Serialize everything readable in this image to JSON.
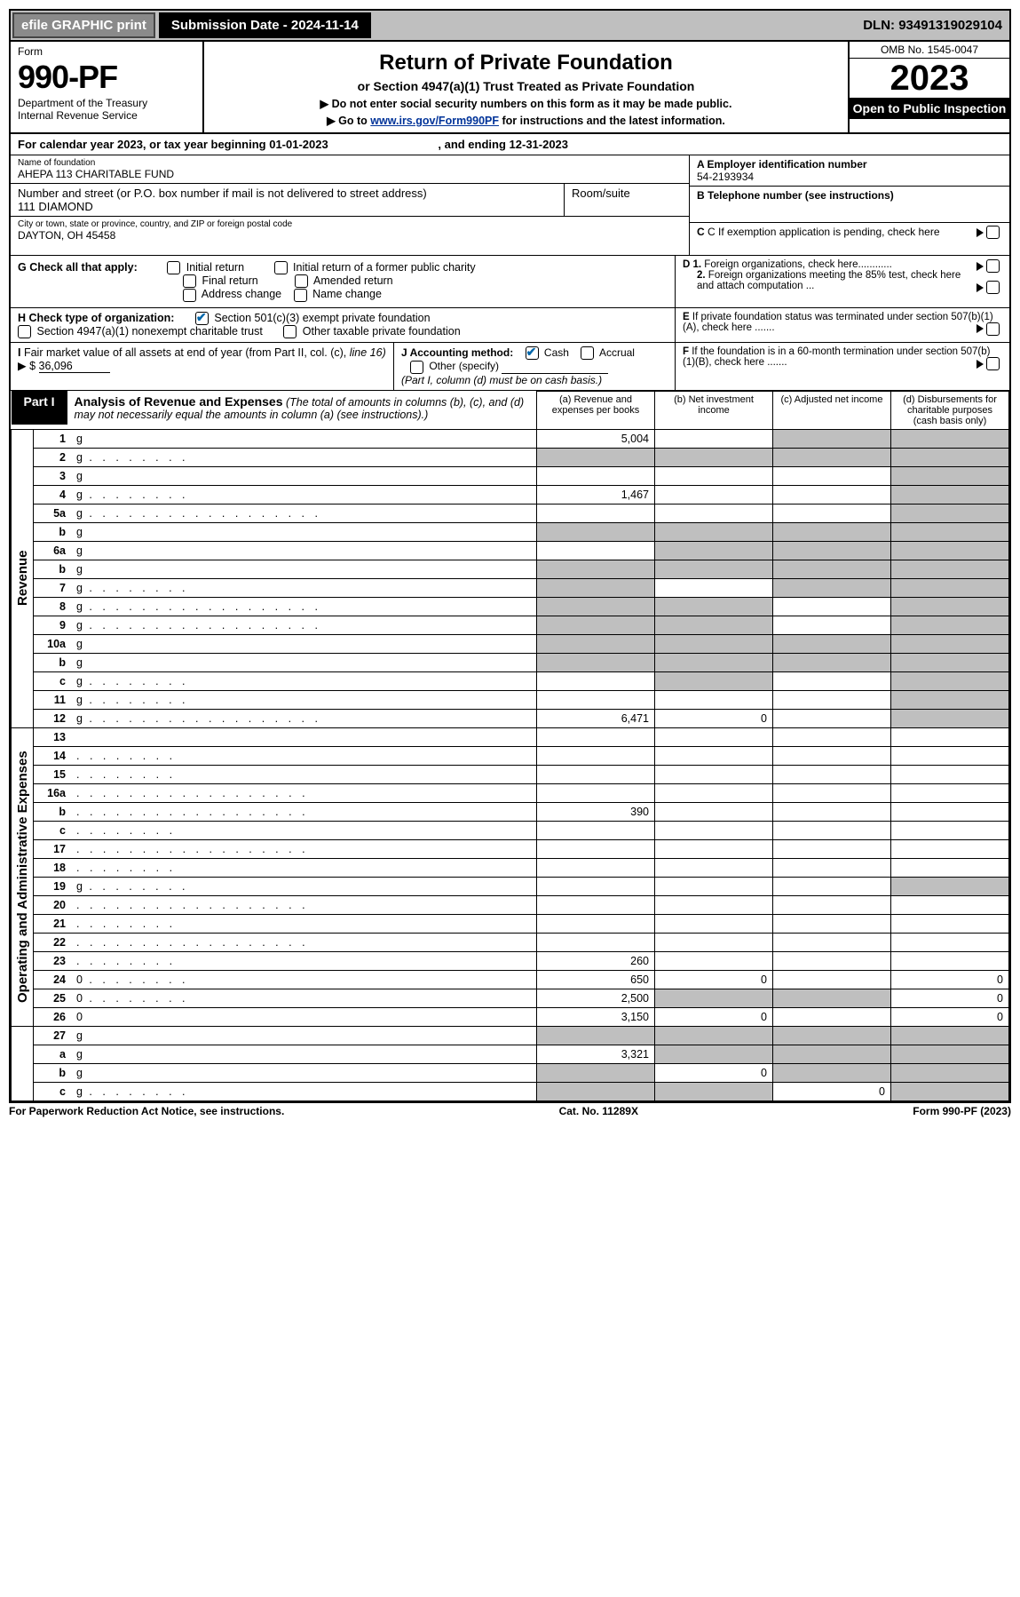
{
  "topbar": {
    "efile": "efile GRAPHIC print",
    "submission": "Submission Date - 2024-11-14",
    "dln": "DLN: 93491319029104"
  },
  "header": {
    "form_word": "Form",
    "form_number": "990-PF",
    "dept": "Department of the Treasury",
    "irs": "Internal Revenue Service",
    "title": "Return of Private Foundation",
    "subtitle": "or Section 4947(a)(1) Trust Treated as Private Foundation",
    "note1": "▶ Do not enter social security numbers on this form as it may be made public.",
    "note2_pre": "▶ Go to ",
    "note2_link": "www.irs.gov/Form990PF",
    "note2_post": " for instructions and the latest information.",
    "omb": "OMB No. 1545-0047",
    "year": "2023",
    "open": "Open to Public Inspection"
  },
  "cal": {
    "line1": "For calendar year 2023, or tax year beginning 01-01-2023",
    "line2": ", and ending 12-31-2023"
  },
  "foundation": {
    "name_label": "Name of foundation",
    "name": "AHEPA 113 CHARITABLE FUND",
    "addr_label": "Number and street (or P.O. box number if mail is not delivered to street address)",
    "addr": "111 DIAMOND",
    "room_label": "Room/suite",
    "city_label": "City or town, state or province, country, and ZIP or foreign postal code",
    "city": "DAYTON, OH  45458",
    "a_label": "A Employer identification number",
    "a_val": "54-2193934",
    "b_label": "B Telephone number (see instructions)",
    "c_label": "C If exemption application is pending, check here",
    "d1_label": "D 1. Foreign organizations, check here............",
    "d2_label": "2. Foreign organizations meeting the 85% test, check here and attach computation ...",
    "e_label": "E  If private foundation status was terminated under section 507(b)(1)(A), check here .......",
    "f_label": "F  If the foundation is in a 60-month termination under section 507(b)(1)(B), check here ......."
  },
  "g": {
    "label": "G Check all that apply:",
    "opts": [
      "Initial return",
      "Initial return of a former public charity",
      "Final return",
      "Amended return",
      "Address change",
      "Name change"
    ]
  },
  "h": {
    "label": "H Check type of organization:",
    "opt1": "Section 501(c)(3) exempt private foundation",
    "opt2": "Section 4947(a)(1) nonexempt charitable trust",
    "opt3": "Other taxable private foundation"
  },
  "i": {
    "label_pre": "I Fair market value of all assets at end of year (from Part II, col. (c), line 16) ",
    "amount_prefix": "▶ $  ",
    "amount": "36,096",
    "j_label": "J Accounting method:",
    "j_cash": "Cash",
    "j_accrual": "Accrual",
    "j_other": "Other (specify)",
    "j_note": "(Part I, column (d) must be on cash basis.)"
  },
  "part1": {
    "badge": "Part I",
    "title": "Analysis of Revenue and Expenses",
    "title_note": " (The total of amounts in columns (b), (c), and (d) may not necessarily equal the amounts in column (a) (see instructions).)",
    "cols": {
      "a": "(a)   Revenue and expenses per books",
      "b": "(b)   Net investment income",
      "c": "(c)   Adjusted net income",
      "d": "(d)   Disbursements for charitable purposes (cash basis only)"
    }
  },
  "sections": {
    "revenue": "Revenue",
    "opex": "Operating and Administrative Expenses"
  },
  "rows": [
    {
      "sec": "rev",
      "n": "1",
      "d": "g",
      "a": "5,004",
      "b": "",
      "c": "g",
      "dot": false
    },
    {
      "sec": "rev",
      "n": "2",
      "d": "g",
      "a": "g",
      "b": "g",
      "c": "g",
      "dot": false,
      "dotshort": true
    },
    {
      "sec": "rev",
      "n": "3",
      "d": "g",
      "a": "",
      "b": "",
      "c": "",
      "dot": false
    },
    {
      "sec": "rev",
      "n": "4",
      "d": "g",
      "a": "1,467",
      "b": "",
      "c": "",
      "dot": false,
      "dotshort": true
    },
    {
      "sec": "rev",
      "n": "5a",
      "d": "g",
      "a": "",
      "b": "",
      "c": "",
      "dot": true
    },
    {
      "sec": "rev",
      "n": "b",
      "d": "g",
      "a": "g",
      "b": "g",
      "c": "g",
      "dot": false
    },
    {
      "sec": "rev",
      "n": "6a",
      "d": "g",
      "a": "",
      "b": "g",
      "c": "g",
      "dot": false
    },
    {
      "sec": "rev",
      "n": "b",
      "d": "g",
      "a": "g",
      "b": "g",
      "c": "g",
      "dot": false
    },
    {
      "sec": "rev",
      "n": "7",
      "d": "g",
      "a": "g",
      "b": "",
      "c": "g",
      "dot": false,
      "dotshort": true
    },
    {
      "sec": "rev",
      "n": "8",
      "d": "g",
      "a": "g",
      "b": "g",
      "c": "",
      "dot": true
    },
    {
      "sec": "rev",
      "n": "9",
      "d": "g",
      "a": "g",
      "b": "g",
      "c": "",
      "dot": true
    },
    {
      "sec": "rev",
      "n": "10a",
      "d": "g",
      "a": "g",
      "b": "g",
      "c": "g",
      "dot": false
    },
    {
      "sec": "rev",
      "n": "b",
      "d": "g",
      "a": "g",
      "b": "g",
      "c": "g",
      "dot": false
    },
    {
      "sec": "rev",
      "n": "c",
      "d": "g",
      "a": "",
      "b": "g",
      "c": "",
      "dot": false,
      "dotshort": true
    },
    {
      "sec": "rev",
      "n": "11",
      "d": "g",
      "a": "",
      "b": "",
      "c": "",
      "dot": false,
      "dotshort": true
    },
    {
      "sec": "rev",
      "n": "12",
      "d": "g",
      "a": "6,471",
      "b": "0",
      "c": "",
      "dot": true
    },
    {
      "sec": "op",
      "n": "13",
      "d": "",
      "a": "",
      "b": "",
      "c": "",
      "dot": false
    },
    {
      "sec": "op",
      "n": "14",
      "d": "",
      "a": "",
      "b": "",
      "c": "",
      "dot": false,
      "dotshort": true
    },
    {
      "sec": "op",
      "n": "15",
      "d": "",
      "a": "",
      "b": "",
      "c": "",
      "dot": false,
      "dotshort": true
    },
    {
      "sec": "op",
      "n": "16a",
      "d": "",
      "a": "",
      "b": "",
      "c": "",
      "dot": true
    },
    {
      "sec": "op",
      "n": "b",
      "d": "",
      "a": "390",
      "b": "",
      "c": "",
      "dot": true
    },
    {
      "sec": "op",
      "n": "c",
      "d": "",
      "a": "",
      "b": "",
      "c": "",
      "dot": false,
      "dotshort": true
    },
    {
      "sec": "op",
      "n": "17",
      "d": "",
      "a": "",
      "b": "",
      "c": "",
      "dot": true
    },
    {
      "sec": "op",
      "n": "18",
      "d": "",
      "a": "",
      "b": "",
      "c": "",
      "dot": false,
      "dotshort": true
    },
    {
      "sec": "op",
      "n": "19",
      "d": "g",
      "a": "",
      "b": "",
      "c": "",
      "dot": false,
      "dotshort": true
    },
    {
      "sec": "op",
      "n": "20",
      "d": "",
      "a": "",
      "b": "",
      "c": "",
      "dot": true
    },
    {
      "sec": "op",
      "n": "21",
      "d": "",
      "a": "",
      "b": "",
      "c": "",
      "dot": false,
      "dotshort": true
    },
    {
      "sec": "op",
      "n": "22",
      "d": "",
      "a": "",
      "b": "",
      "c": "",
      "dot": true
    },
    {
      "sec": "op",
      "n": "23",
      "d": "",
      "a": "260",
      "b": "",
      "c": "",
      "dot": false,
      "dotshort": true
    },
    {
      "sec": "op",
      "n": "24",
      "d": "0",
      "a": "650",
      "b": "0",
      "c": "",
      "dot": false,
      "dotshort": true
    },
    {
      "sec": "op",
      "n": "25",
      "d": "0",
      "a": "2,500",
      "b": "g",
      "c": "g",
      "dot": false,
      "dotshort": true
    },
    {
      "sec": "op",
      "n": "26",
      "d": "0",
      "a": "3,150",
      "b": "0",
      "c": "",
      "dot": false
    },
    {
      "sec": "none",
      "n": "27",
      "d": "g",
      "a": "g",
      "b": "g",
      "c": "g",
      "dot": false
    },
    {
      "sec": "none",
      "n": "a",
      "d": "g",
      "a": "3,321",
      "b": "g",
      "c": "g",
      "dot": false
    },
    {
      "sec": "none",
      "n": "b",
      "d": "g",
      "a": "g",
      "b": "0",
      "c": "g",
      "dot": false
    },
    {
      "sec": "none",
      "n": "c",
      "d": "g",
      "a": "g",
      "b": "g",
      "c": "0",
      "dot": false,
      "dotshort": true
    }
  ],
  "footer": {
    "left": "For Paperwork Reduction Act Notice, see instructions.",
    "mid": "Cat. No. 11289X",
    "right": "Form 990-PF (2023)"
  },
  "colors": {
    "grey": "#bfbfbf",
    "link": "#003399",
    "check": "#0066aa"
  }
}
